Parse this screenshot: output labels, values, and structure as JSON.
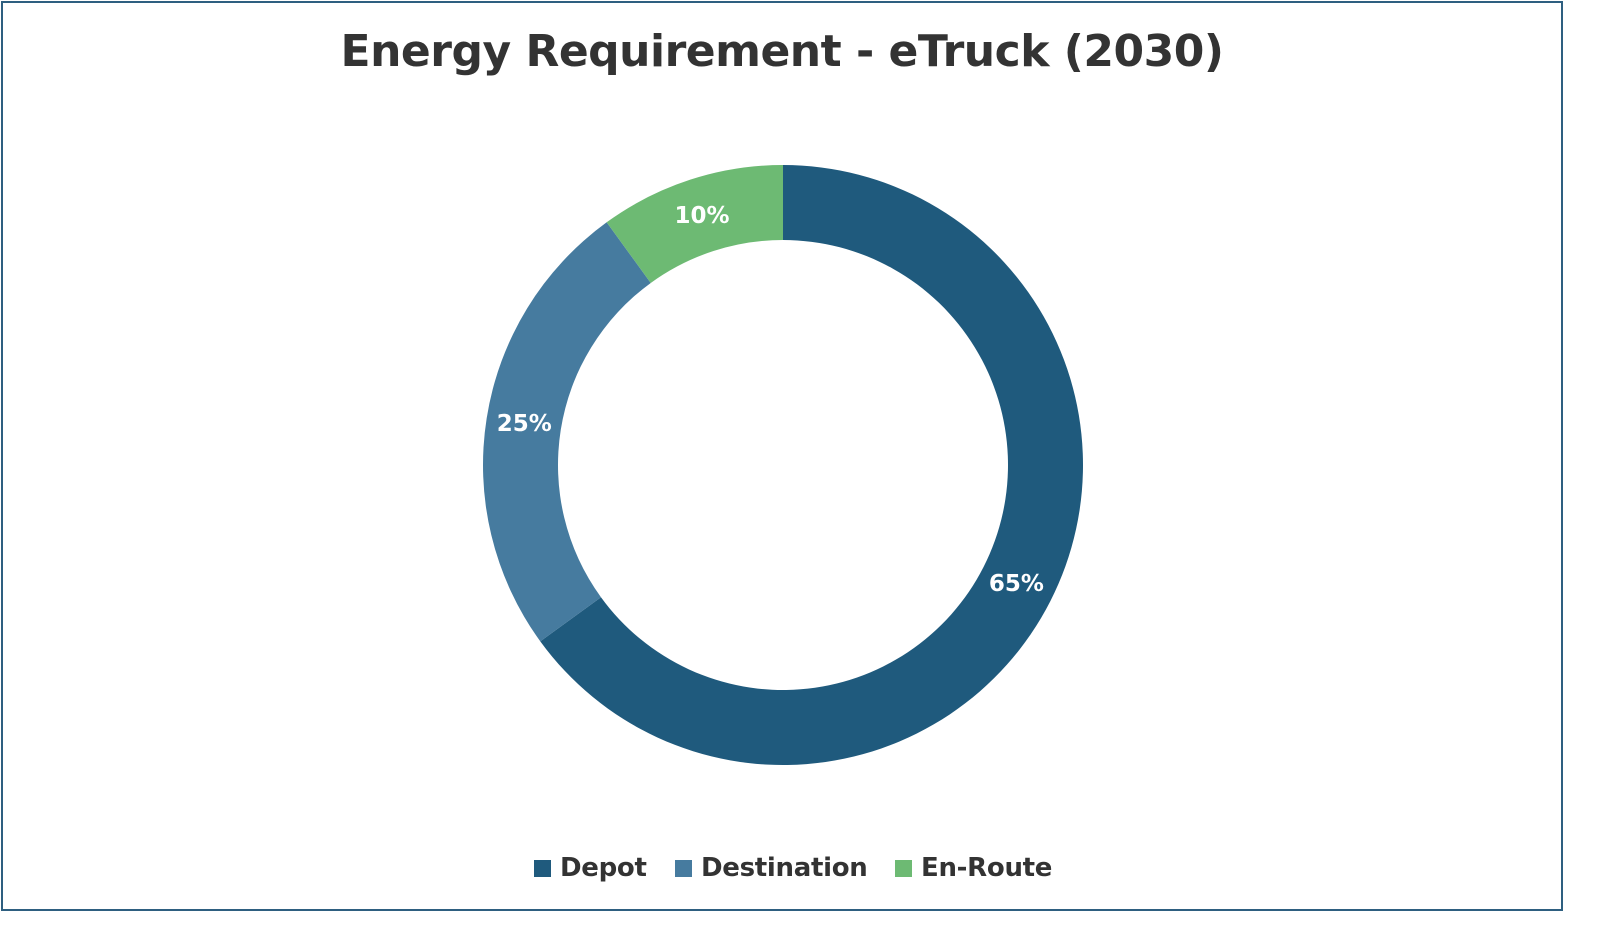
{
  "chart_data": {
    "type": "pie",
    "subtype": "donut",
    "title": "Energy Requirement - eTruck (2030)",
    "categories": [
      "Depot",
      "Destination",
      "En-Route"
    ],
    "values": [
      65,
      25,
      10
    ],
    "labels": [
      "65%",
      "25%",
      "10%"
    ],
    "unit": "%",
    "colors": [
      "#1f5a7d",
      "#467b9f",
      "#6dba73"
    ],
    "legend": "bottom"
  }
}
